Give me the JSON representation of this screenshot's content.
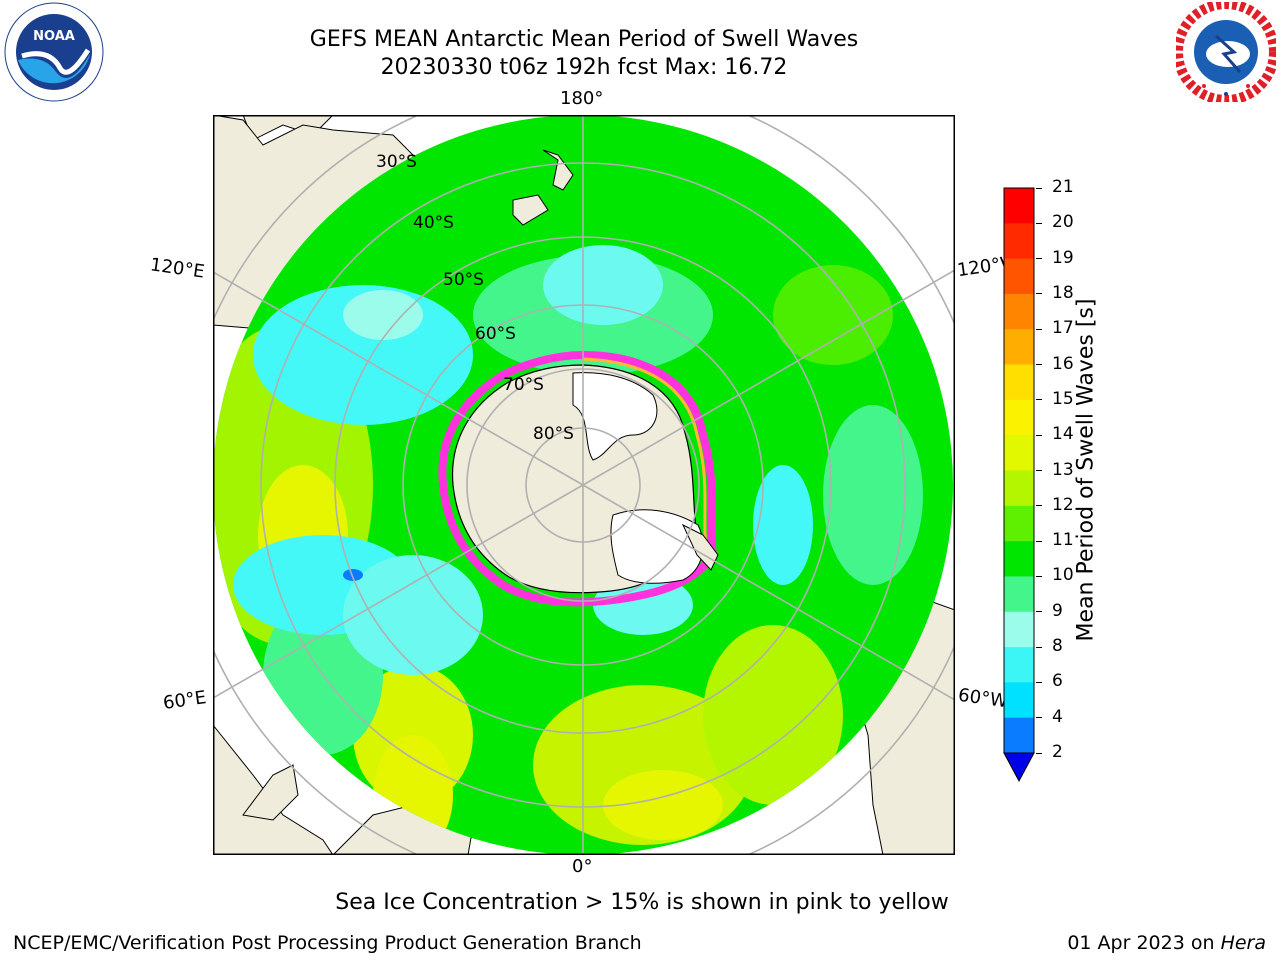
{
  "header": {
    "title_line1": "GEFS MEAN Antarctic Mean Period of Swell Waves",
    "title_line2": "20230330 t06z 192h fcst   Max: 16.72"
  },
  "logos": {
    "noaa": {
      "center_text": "NOAA",
      "ring_text": "NATIONAL OCEANIC AND ATMOSPHERIC ADMINISTRATION · U.S. DEPARTMENT OF COMMERCE"
    },
    "nws": {
      "ring_text": "NATIONAL WEATHER SERVICE"
    }
  },
  "map": {
    "projection": "south polar stereographic",
    "longitude_labels": {
      "top": "180°",
      "bottom": "0°",
      "upper_left": "120°E",
      "upper_right": "120°W",
      "lower_left": "60°E",
      "lower_right": "60°W"
    },
    "latitude_labels": [
      "30°S",
      "40°S",
      "50°S",
      "60°S",
      "70°S",
      "80°S"
    ],
    "note": "Sea Ice Concentration > 15% is shown in pink to yellow"
  },
  "colorbar": {
    "label": "Mean Period of Swell Waves [s]",
    "ticks": [
      "2",
      "4",
      "6",
      "8",
      "9",
      "10",
      "11",
      "12",
      "13",
      "14",
      "15",
      "16",
      "17",
      "18",
      "19",
      "20",
      "21"
    ],
    "colors": [
      "#0000e8",
      "#0a7cff",
      "#00e0ff",
      "#3cf6f6",
      "#9cfcec",
      "#44f58c",
      "#00e600",
      "#5ef000",
      "#b4f500",
      "#e2f800",
      "#fbf200",
      "#ffdf00",
      "#ffae00",
      "#ff8400",
      "#ff5500",
      "#ff2a00",
      "#ff0000"
    ],
    "extend": "min"
  },
  "footer": {
    "left": "NCEP/EMC/Verification Post Processing Product Generation Branch",
    "right_date": "01 Apr 2023 on ",
    "right_host": "Hera"
  },
  "colors": {
    "land": "#efecdc",
    "ocean_green": "#00e600",
    "swell_yellow": "#e6f500",
    "swell_cyan": "#44f8f8",
    "sea_ice_pink": "#ff33dd",
    "sea_ice_orange": "#ffb833"
  }
}
